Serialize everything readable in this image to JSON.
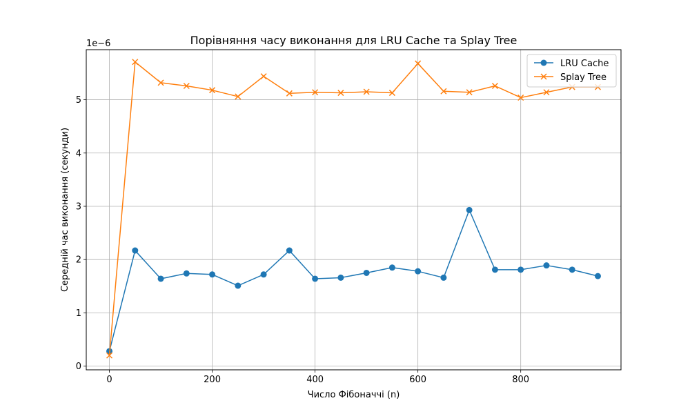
{
  "chart_data": {
    "type": "line",
    "title": "Порівняння часу виконання для LRU Cache та Splay Tree",
    "xlabel": "Число Фібоначчі (n)",
    "ylabel": "Середній час виконання (секунди)",
    "y_scale_label": "1e−6",
    "xlim": [
      -45,
      995
    ],
    "ylim": [
      -0.07,
      5.94
    ],
    "x_ticks": [
      0,
      200,
      400,
      600,
      800
    ],
    "x_tick_labels": [
      "0",
      "200",
      "400",
      "600",
      "800"
    ],
    "y_ticks": [
      0,
      1,
      2,
      3,
      4,
      5
    ],
    "y_tick_labels": [
      "0",
      "1",
      "2",
      "3",
      "4",
      "5"
    ],
    "grid": true,
    "legend_position": "top-right",
    "x": [
      0,
      50,
      100,
      150,
      200,
      250,
      300,
      350,
      400,
      450,
      500,
      550,
      600,
      650,
      700,
      750,
      800,
      850,
      900,
      950
    ],
    "series": [
      {
        "name": "LRU Cache",
        "marker": "circle",
        "color": "#1f77b4",
        "values": [
          0.28,
          2.17,
          1.64,
          1.74,
          1.72,
          1.51,
          1.72,
          2.17,
          1.64,
          1.66,
          1.75,
          1.85,
          1.78,
          1.66,
          2.93,
          1.81,
          1.81,
          1.89,
          1.81,
          1.69
        ]
      },
      {
        "name": "Splay Tree",
        "marker": "x",
        "color": "#ff7f0e",
        "values": [
          0.2,
          5.71,
          5.32,
          5.26,
          5.18,
          5.06,
          5.44,
          5.12,
          5.14,
          5.13,
          5.15,
          5.13,
          5.68,
          5.16,
          5.14,
          5.26,
          5.04,
          5.14,
          5.24,
          5.24
        ]
      }
    ]
  }
}
